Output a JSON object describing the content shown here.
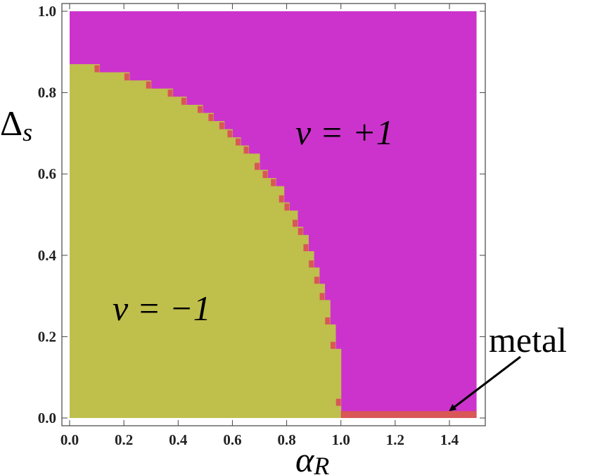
{
  "chart_data": {
    "type": "phase-diagram",
    "x_label": {
      "symbol": "α",
      "subscript": "R"
    },
    "y_label": {
      "symbol": "Δ",
      "subscript": "s"
    },
    "xlim": [
      0,
      1.5
    ],
    "ylim": [
      0,
      1
    ],
    "xticks": [
      {
        "value": 0,
        "label": "0.0"
      },
      {
        "value": 0.2,
        "label": "0.2"
      },
      {
        "value": 0.4,
        "label": "0.4"
      },
      {
        "value": 0.6,
        "label": "0.6"
      },
      {
        "value": 0.8,
        "label": "0.8"
      },
      {
        "value": 1,
        "label": "1.0"
      },
      {
        "value": 1.2,
        "label": "1.2"
      },
      {
        "value": 1.4,
        "label": "1.4"
      }
    ],
    "yticks": [
      {
        "value": 0,
        "label": "0.0"
      },
      {
        "value": 0.2,
        "label": "0.2"
      },
      {
        "value": 0.4,
        "label": "0.4"
      },
      {
        "value": 0.6,
        "label": "0.6"
      },
      {
        "value": 0.8,
        "label": "0.8"
      },
      {
        "value": 1,
        "label": "1.0"
      }
    ],
    "background_color": "#cc33cc",
    "boundary": {
      "color": "#bfbf4c",
      "edge_color": "#d95757",
      "x": [
        0,
        0.11,
        0.22,
        0.3,
        0.38,
        0.43,
        0.49,
        0.53,
        0.57,
        0.6,
        0.63,
        0.66,
        0.7,
        0.73,
        0.76,
        0.79,
        0.81,
        0.84,
        0.86,
        0.88,
        0.9,
        0.92,
        0.94,
        0.96,
        0.98,
        1.0
      ],
      "y": [
        0.87,
        0.85,
        0.83,
        0.81,
        0.79,
        0.77,
        0.75,
        0.73,
        0.71,
        0.69,
        0.67,
        0.65,
        0.61,
        0.59,
        0.57,
        0.53,
        0.51,
        0.47,
        0.45,
        0.41,
        0.37,
        0.33,
        0.29,
        0.23,
        0.17,
        0.03
      ]
    },
    "metal_strip": {
      "x": [
        1.0,
        1.5
      ],
      "y": [
        0,
        0.01
      ],
      "color": "#d95757"
    },
    "annotations": {
      "upper": "ν = +1",
      "lower": "ν = −1",
      "metal": "metal"
    }
  }
}
